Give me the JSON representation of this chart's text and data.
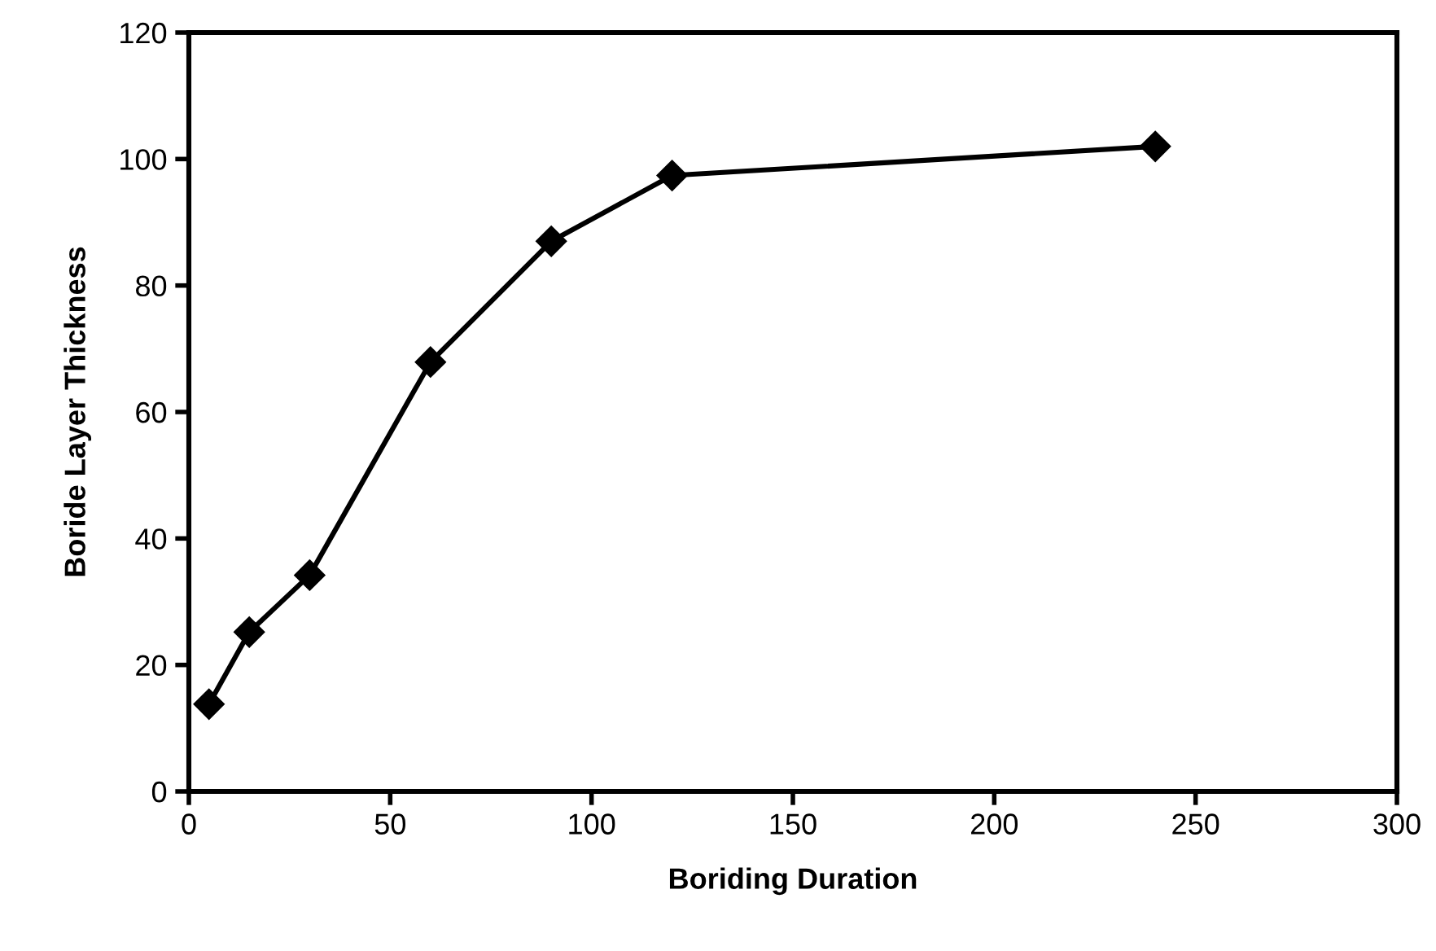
{
  "chart_data": {
    "type": "line",
    "xlabel": "Boriding Duration",
    "ylabel": "Boride Layer Thickness",
    "x": [
      5,
      15,
      30,
      60,
      90,
      120,
      240
    ],
    "series": [
      {
        "color": "#000000",
        "values": [
          13.8,
          25.2,
          34.2,
          67.9,
          87.0,
          97.4,
          102.0
        ]
      }
    ],
    "xlim": [
      0,
      300
    ],
    "xticks": [
      0,
      50,
      100,
      150,
      200,
      250,
      300
    ],
    "ylim": [
      0,
      120
    ],
    "yticks": [
      0,
      20,
      40,
      60,
      80,
      100,
      120
    ],
    "grid": false,
    "marker": "diamond",
    "line_style": "solid"
  }
}
